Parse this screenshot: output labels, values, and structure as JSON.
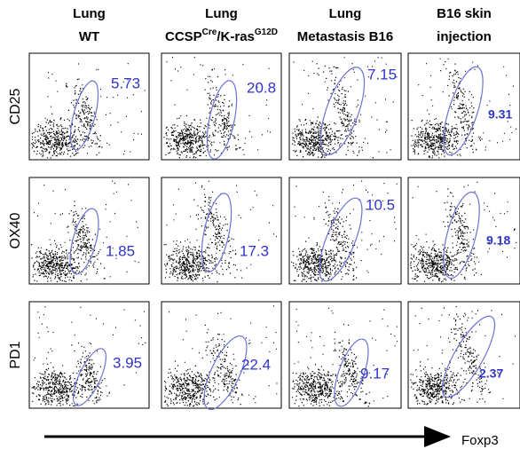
{
  "columns": [
    {
      "line1": "Lung",
      "line2": [
        {
          "text": "WT",
          "sup": false
        }
      ]
    },
    {
      "line1": "Lung",
      "line2": [
        {
          "text": "CCSP",
          "sup": false
        },
        {
          "text": "Cre",
          "sup": true
        },
        {
          "text": "/K-ras",
          "sup": false
        },
        {
          "text": "G12D",
          "sup": true
        }
      ]
    },
    {
      "line1": "Lung",
      "line2": [
        {
          "text": "Metastasis B16",
          "sup": false
        }
      ]
    },
    {
      "line1": "B16 skin",
      "line2": [
        {
          "text": "injection",
          "sup": false
        }
      ]
    }
  ],
  "rows": [
    {
      "label": "CD25",
      "gates": [
        5.73,
        20.8,
        7.15,
        9.31
      ]
    },
    {
      "label": "OX40",
      "gates": [
        1.85,
        17.3,
        10.5,
        9.18
      ]
    },
    {
      "label": "PD1",
      "gates": [
        3.95,
        22.4,
        9.17,
        2.37
      ]
    }
  ],
  "x_axis_label": "Foxp3"
}
